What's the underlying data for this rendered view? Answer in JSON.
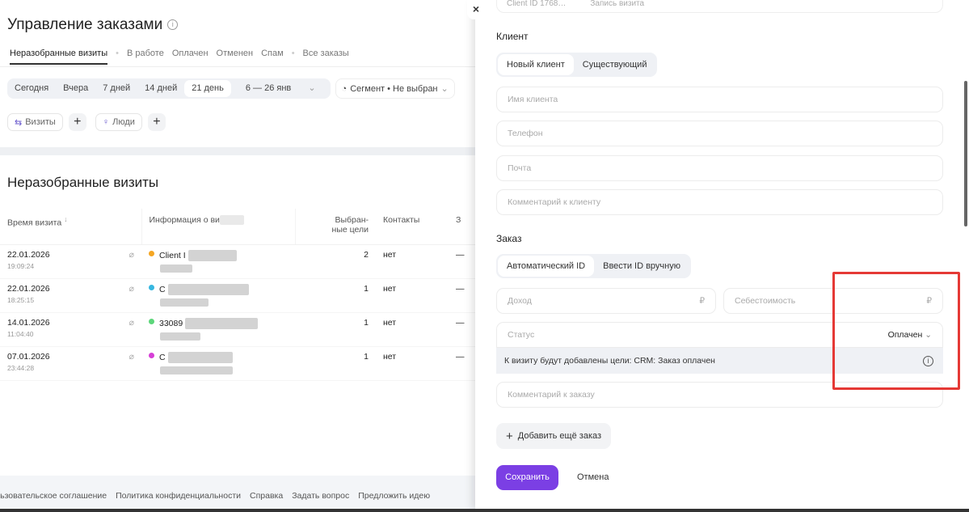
{
  "page": {
    "title": "Управление заказами",
    "tabs": [
      "Неразобранные визиты",
      "В работе",
      "Оплачен",
      "Отменен",
      "Спам",
      "Все заказы"
    ],
    "date_presets": [
      "Сегодня",
      "Вчера",
      "7 дней",
      "14 дней",
      "21 день"
    ],
    "date_range": "6 — 26 янв",
    "segment": "Сегмент • Не выбран",
    "chips": {
      "visits": "Визиты",
      "people": "Люди"
    },
    "section_title": "Неразобранные визиты",
    "table": {
      "headers": [
        "Время визита",
        "Информация о ви",
        "Выбран-\nные цели",
        "Контакты",
        "З"
      ],
      "rows": [
        {
          "date": "22.01.2026",
          "time": "19:09:24",
          "info": "Client I",
          "goals": "2",
          "contacts": "нет",
          "last": "—",
          "color": "#f5a623"
        },
        {
          "date": "22.01.2026",
          "time": "18:25:15",
          "info": "C",
          "goals": "1",
          "contacts": "нет",
          "last": "—",
          "color": "#36b7e0"
        },
        {
          "date": "14.01.2026",
          "time": "11:04:40",
          "info": "33089",
          "goals": "1",
          "contacts": "нет",
          "last": "—",
          "color": "#5cd67a"
        },
        {
          "date": "07.01.2026",
          "time": "23:44:28",
          "info": "C",
          "goals": "1",
          "contacts": "нет",
          "last": "—",
          "color": "#d63fd6"
        }
      ]
    },
    "footer": [
      "льзовательское соглашение",
      "Политика конфиденциальности",
      "Справка",
      "Задать вопрос",
      "Предложить идею"
    ]
  },
  "panel": {
    "top_card": {
      "client_id": "Client ID 1768…",
      "record": "Запись визита"
    },
    "client_label": "Клиент",
    "client_toggle": [
      "Новый клиент",
      "Существующий"
    ],
    "client_fields": [
      "Имя клиента",
      "Телефон",
      "Почта",
      "Комментарий к клиенту"
    ],
    "order_label": "Заказ",
    "order_toggle": [
      "Автоматический ID",
      "Ввести ID вручную"
    ],
    "income_placeholder": "Доход",
    "cost_placeholder": "Себестоимость",
    "currency": "₽",
    "status_label": "Статус",
    "status_value": "Оплачен",
    "note": "К визиту будут добавлены цели: CRM: Заказ оплачен",
    "order_comment": "Комментарий к заказу",
    "add_order": "Добавить ещё заказ",
    "save": "Сохранить",
    "cancel": "Отмена"
  },
  "colors": {
    "accent": "#7b3fe4",
    "highlight": "#e53935"
  }
}
